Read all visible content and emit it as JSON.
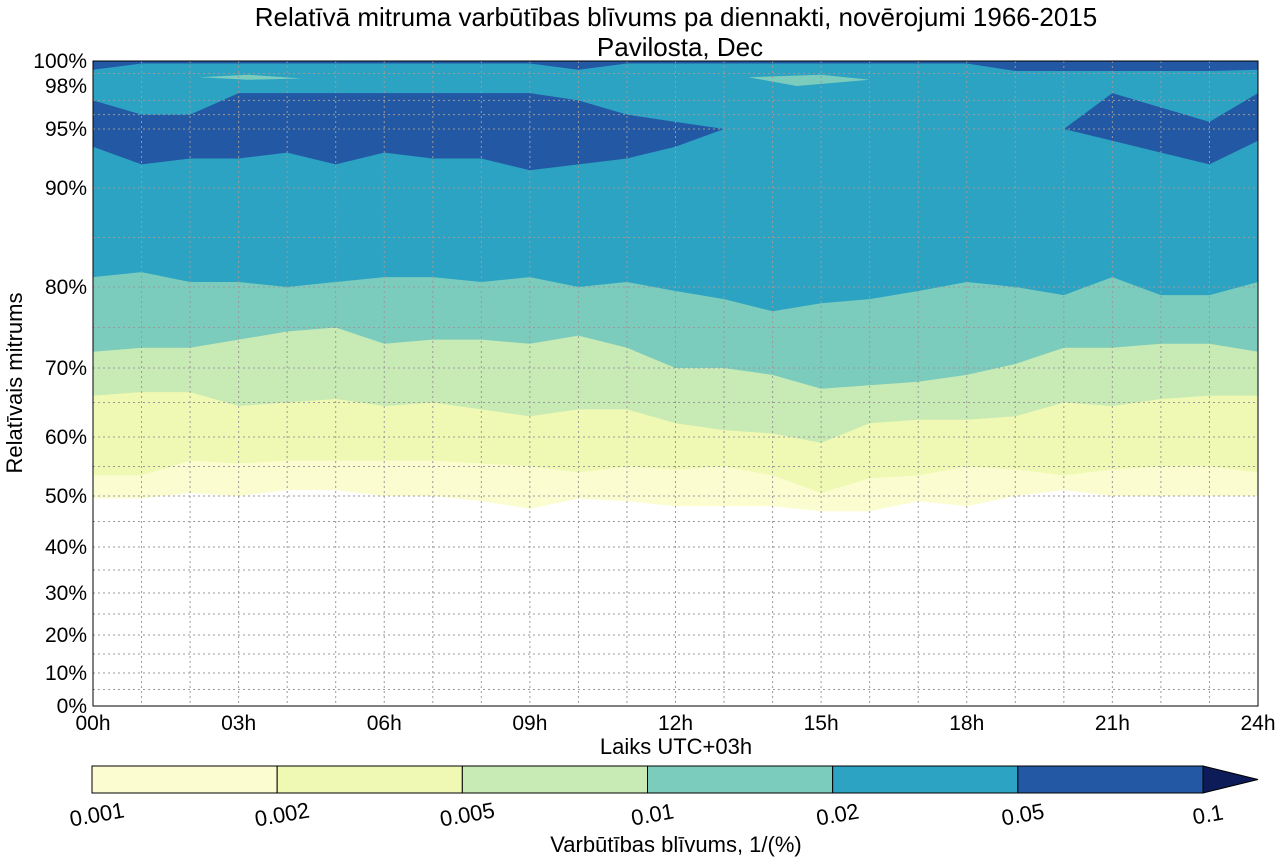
{
  "chart_data": {
    "type": "heatmap",
    "subtype": "filled-contour",
    "title": "Relatīvā mitruma varbūtības blīvums pa diennakti, novērojumi 1966-2015",
    "subtitle": "Pavilosta, Dec",
    "xlabel": "Laiks UTC+03h",
    "ylabel": "Relatīvais mitrums",
    "x_range": [
      0,
      24
    ],
    "x_ticks": [
      0,
      3,
      6,
      9,
      12,
      15,
      18,
      21,
      24
    ],
    "x_tick_labels": [
      "00h",
      "03h",
      "06h",
      "09h",
      "12h",
      "15h",
      "18h",
      "21h",
      "24h"
    ],
    "y_scale": "custom, stretched toward 100%",
    "y_ticks": [
      0,
      10,
      20,
      30,
      40,
      50,
      60,
      70,
      80,
      90,
      95,
      98,
      100
    ],
    "y_tick_labels": [
      "0%",
      "10%",
      "20%",
      "30%",
      "40%",
      "50%",
      "60%",
      "70%",
      "80%",
      "90%",
      "95%",
      "98%",
      "100%"
    ],
    "grid": true,
    "hours": [
      0,
      1,
      2,
      3,
      4,
      5,
      6,
      7,
      8,
      9,
      10,
      11,
      12,
      13,
      14,
      15,
      16,
      17,
      18,
      19,
      20,
      21,
      22,
      23,
      24
    ],
    "level_boundaries_percent_rh": {
      "lower_0.001": [
        49.5,
        49.5,
        50.5,
        50,
        51,
        51,
        50,
        50,
        49,
        47.5,
        49.5,
        49,
        48,
        48,
        48,
        47,
        47,
        49,
        48,
        50,
        51,
        50,
        50,
        50,
        50
      ],
      "lower_0.002": [
        53.5,
        53.5,
        56,
        55.5,
        56,
        56,
        56,
        56,
        55.5,
        55,
        54,
        55,
        54.5,
        55,
        53.5,
        50.5,
        53,
        53.5,
        55,
        54.5,
        53.5,
        54.5,
        55,
        55,
        54
      ],
      "lower_0.005": [
        66,
        66.5,
        66.5,
        64.5,
        65,
        65.5,
        64.5,
        65,
        64,
        63,
        64,
        64,
        62,
        61,
        60.5,
        59,
        62,
        62.5,
        62.5,
        63,
        65,
        64.5,
        65.5,
        66,
        66
      ],
      "lower_0.01": [
        72,
        72.5,
        72.5,
        73.5,
        74.5,
        75,
        73,
        73.5,
        73.5,
        73,
        74,
        72.5,
        70,
        70,
        69,
        67,
        67.5,
        68,
        69,
        70.5,
        72.5,
        72.5,
        73,
        73,
        72
      ],
      "lower_0.02": [
        81,
        81.5,
        80.5,
        80.5,
        80,
        80.5,
        81,
        81,
        80.5,
        81,
        80,
        80.5,
        79.5,
        78.5,
        77,
        78,
        78.5,
        79.5,
        80.5,
        80,
        79,
        81,
        79,
        79,
        80.5
      ],
      "lower_0.05": [
        93.5,
        92,
        92.5,
        92.5,
        93,
        92,
        93,
        92.5,
        92.5,
        91.5,
        92,
        92.5,
        93.5,
        95,
        0,
        0,
        0,
        0,
        0,
        0,
        95,
        94,
        93,
        92,
        94
      ],
      "upper_0.05": [
        97,
        96,
        96,
        97.5,
        97.5,
        97.5,
        97.5,
        97.5,
        97.5,
        97.5,
        97,
        96,
        95.5,
        95,
        0,
        0,
        0,
        0,
        0,
        0,
        95,
        97.5,
        96.5,
        95.5,
        97.5
      ]
    },
    "colorbar": {
      "label": "Varbūtības blīvums, 1/(%)",
      "ticks": [
        "0.001",
        "0.002",
        "0.005",
        "0.01",
        "0.02",
        "0.05",
        "0.1"
      ],
      "levels": [
        0.001,
        0.002,
        0.005,
        0.01,
        0.02,
        0.05,
        0.1
      ],
      "colors": [
        "#fbfdd0",
        "#eff9b3",
        "#c8eab5",
        "#7bccbc",
        "#2ca3c3",
        "#2358a5",
        "#0d1b58"
      ],
      "extend": "max"
    }
  }
}
